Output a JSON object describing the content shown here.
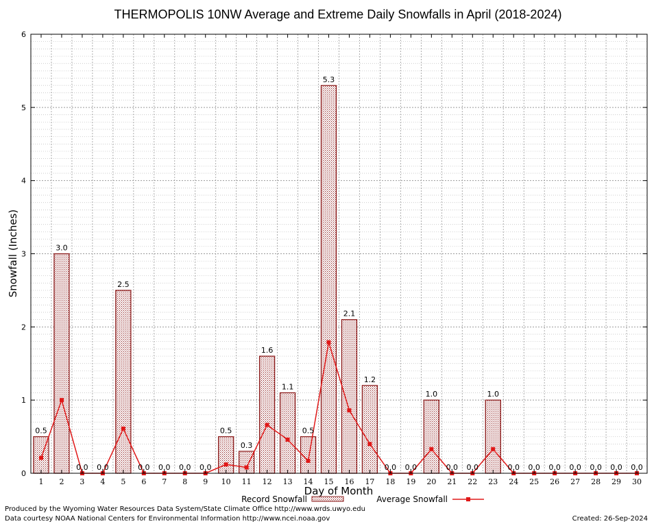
{
  "chart_data": {
    "type": "bar",
    "title": "THERMOPOLIS 10NW Average and Extreme Daily Snowfalls in April (2018-2024)",
    "xlabel": "Day of Month",
    "ylabel": "Snowfall (Inches)",
    "ylim": [
      0,
      6
    ],
    "yticks": [
      "0",
      "1",
      "2",
      "3",
      "4",
      "5",
      "6"
    ],
    "categories": [
      "1",
      "2",
      "3",
      "4",
      "5",
      "6",
      "7",
      "8",
      "9",
      "10",
      "11",
      "12",
      "13",
      "14",
      "15",
      "16",
      "17",
      "18",
      "19",
      "20",
      "21",
      "22",
      "23",
      "24",
      "25",
      "26",
      "27",
      "28",
      "29",
      "30"
    ],
    "series": [
      {
        "name": "Record Snowfall",
        "kind": "bar",
        "values": [
          0.5,
          3.0,
          0.0,
          0.0,
          2.5,
          0.0,
          0.0,
          0.0,
          0.0,
          0.5,
          0.3,
          1.6,
          1.1,
          0.5,
          5.3,
          2.1,
          1.2,
          0.0,
          0.0,
          1.0,
          0.0,
          0.0,
          1.0,
          0.0,
          0.0,
          0.0,
          0.0,
          0.0,
          0.0,
          0.0
        ],
        "labels": [
          "0.5",
          "3.0",
          "0.0",
          "0.0",
          "2.5",
          "0.0",
          "0.0",
          "0.0",
          "0.0",
          "0.5",
          "0.3",
          "1.6",
          "1.1",
          "0.5",
          "5.3",
          "2.1",
          "1.2",
          "0.0",
          "0.0",
          "1.0",
          "0.0",
          "0.0",
          "1.0",
          "0.0",
          "0.0",
          "0.0",
          "0.0",
          "0.0",
          "0.0",
          "0.0"
        ],
        "color": "#8b1a1a"
      },
      {
        "name": "Average Snowfall",
        "kind": "line",
        "values": [
          0.21,
          1.0,
          0.0,
          0.0,
          0.61,
          0.0,
          0.0,
          0.0,
          0.0,
          0.12,
          0.08,
          0.66,
          0.46,
          0.17,
          1.79,
          0.86,
          0.4,
          0.0,
          0.0,
          0.33,
          0.0,
          0.0,
          0.33,
          0.0,
          0.0,
          0.0,
          0.0,
          0.0,
          0.0,
          0.0
        ],
        "color": "#e01818"
      }
    ],
    "grid": true,
    "legend_position": "bottom-center"
  },
  "footer": {
    "produced_by": "Produced by the Wyoming Water Resources Data System/State Climate Office http://www.wrds.uwyo.edu",
    "data_courtesy": "Data courtesy NOAA National Centers for Environmental Information http://www.ncei.noaa.gov",
    "created": "Created:  26-Sep-2024"
  }
}
